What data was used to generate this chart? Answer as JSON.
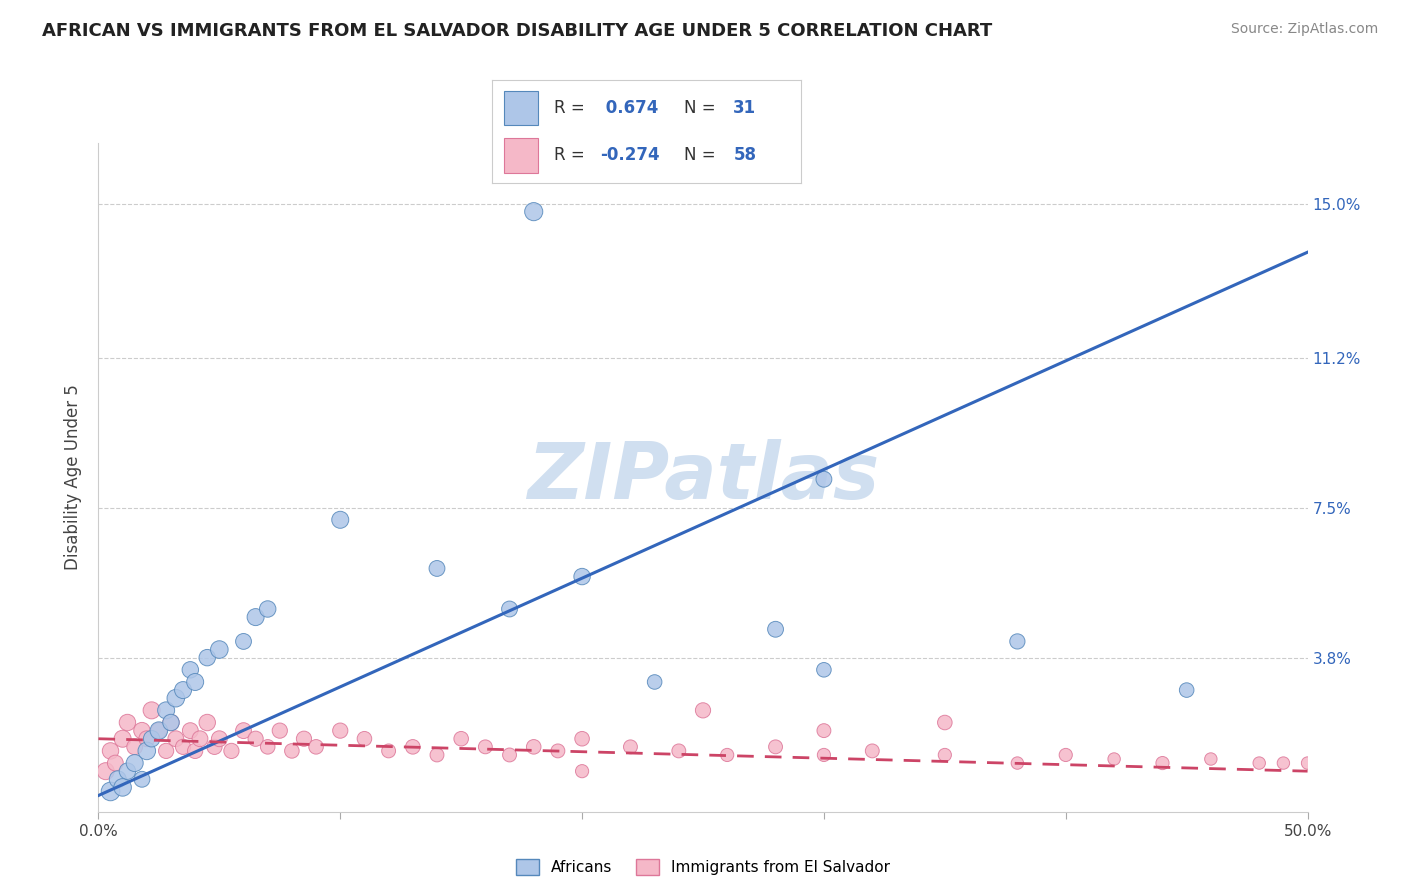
{
  "title": "AFRICAN VS IMMIGRANTS FROM EL SALVADOR DISABILITY AGE UNDER 5 CORRELATION CHART",
  "source": "Source: ZipAtlas.com",
  "ylabel": "Disability Age Under 5",
  "xlim": [
    0.0,
    0.5
  ],
  "ylim": [
    0.0,
    0.165
  ],
  "ytick_positions": [
    0.038,
    0.075,
    0.112,
    0.15
  ],
  "ytick_labels": [
    "3.8%",
    "7.5%",
    "11.2%",
    "15.0%"
  ],
  "r_african": 0.674,
  "n_african": 31,
  "r_salvador": -0.274,
  "n_salvador": 58,
  "african_color": "#aec6e8",
  "african_edge": "#5588bb",
  "salvador_color": "#f5b8c8",
  "salvador_edge": "#dd7799",
  "trend_african_color": "#3366bb",
  "trend_salvador_color": "#cc4466",
  "watermark": "ZIPatlas",
  "watermark_color": "#d0dff0",
  "legend_label_african": "Africans",
  "legend_label_salvador": "Immigrants from El Salvador",
  "african_trend_x0": 0.0,
  "african_trend_y0": 0.004,
  "african_trend_x1": 0.5,
  "african_trend_y1": 0.138,
  "salvador_trend_x0": 0.0,
  "salvador_trend_y0": 0.018,
  "salvador_trend_x1": 0.5,
  "salvador_trend_y1": 0.01,
  "african_scatter_x": [
    0.005,
    0.008,
    0.01,
    0.012,
    0.015,
    0.018,
    0.02,
    0.022,
    0.025,
    0.028,
    0.03,
    0.032,
    0.035,
    0.038,
    0.04,
    0.045,
    0.05,
    0.06,
    0.065,
    0.07,
    0.1,
    0.14,
    0.17,
    0.2,
    0.23,
    0.28,
    0.3,
    0.38,
    0.45,
    0.3,
    0.18
  ],
  "african_scatter_y": [
    0.005,
    0.008,
    0.006,
    0.01,
    0.012,
    0.008,
    0.015,
    0.018,
    0.02,
    0.025,
    0.022,
    0.028,
    0.03,
    0.035,
    0.032,
    0.038,
    0.04,
    0.042,
    0.048,
    0.05,
    0.072,
    0.06,
    0.05,
    0.058,
    0.032,
    0.045,
    0.035,
    0.042,
    0.03,
    0.082,
    0.148
  ],
  "african_scatter_size": [
    180,
    150,
    160,
    140,
    150,
    130,
    160,
    140,
    160,
    150,
    140,
    160,
    150,
    140,
    150,
    140,
    160,
    130,
    150,
    140,
    150,
    130,
    130,
    140,
    110,
    130,
    110,
    120,
    110,
    130,
    170
  ],
  "salvador_scatter_x": [
    0.003,
    0.005,
    0.007,
    0.01,
    0.012,
    0.015,
    0.018,
    0.02,
    0.022,
    0.025,
    0.028,
    0.03,
    0.032,
    0.035,
    0.038,
    0.04,
    0.042,
    0.045,
    0.048,
    0.05,
    0.055,
    0.06,
    0.065,
    0.07,
    0.075,
    0.08,
    0.085,
    0.09,
    0.1,
    0.11,
    0.12,
    0.13,
    0.14,
    0.15,
    0.16,
    0.17,
    0.18,
    0.19,
    0.2,
    0.22,
    0.24,
    0.26,
    0.28,
    0.3,
    0.32,
    0.35,
    0.38,
    0.4,
    0.42,
    0.44,
    0.46,
    0.48,
    0.49,
    0.5,
    0.25,
    0.3,
    0.35,
    0.2
  ],
  "salvador_scatter_y": [
    0.01,
    0.015,
    0.012,
    0.018,
    0.022,
    0.016,
    0.02,
    0.018,
    0.025,
    0.02,
    0.015,
    0.022,
    0.018,
    0.016,
    0.02,
    0.015,
    0.018,
    0.022,
    0.016,
    0.018,
    0.015,
    0.02,
    0.018,
    0.016,
    0.02,
    0.015,
    0.018,
    0.016,
    0.02,
    0.018,
    0.015,
    0.016,
    0.014,
    0.018,
    0.016,
    0.014,
    0.016,
    0.015,
    0.018,
    0.016,
    0.015,
    0.014,
    0.016,
    0.014,
    0.015,
    0.014,
    0.012,
    0.014,
    0.013,
    0.012,
    0.013,
    0.012,
    0.012,
    0.012,
    0.025,
    0.02,
    0.022,
    0.01
  ],
  "salvador_scatter_size": [
    150,
    140,
    130,
    150,
    140,
    130,
    140,
    130,
    150,
    130,
    120,
    140,
    130,
    120,
    130,
    120,
    130,
    140,
    120,
    130,
    120,
    130,
    120,
    110,
    120,
    110,
    120,
    110,
    120,
    110,
    100,
    110,
    100,
    110,
    100,
    100,
    110,
    100,
    110,
    100,
    100,
    90,
    100,
    90,
    100,
    90,
    80,
    90,
    80,
    90,
    80,
    80,
    80,
    80,
    120,
    100,
    110,
    90
  ]
}
